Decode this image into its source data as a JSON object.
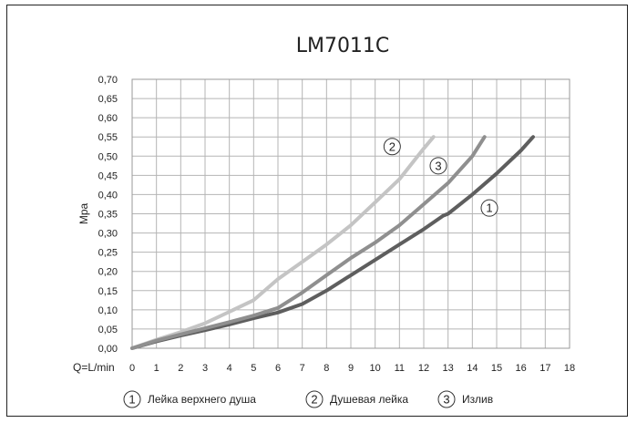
{
  "chart_data": {
    "type": "line",
    "title": "LM7011C",
    "ylabel": "Mpa",
    "xlabel": "Q=L/min",
    "xlim": [
      0,
      18
    ],
    "ylim": [
      0,
      0.7
    ],
    "x_ticks": [
      "0",
      "1",
      "2",
      "3",
      "4",
      "5",
      "6",
      "7",
      "8",
      "9",
      "10",
      "11",
      "12",
      "13",
      "14",
      "15",
      "16",
      "17",
      "18"
    ],
    "y_ticks": [
      "0,00",
      "0,05",
      "0,10",
      "0,15",
      "0,20",
      "0,25",
      "0,30",
      "0,35",
      "0,40",
      "0,45",
      "0,50",
      "0,55",
      "0,60",
      "0,65",
      "0,70"
    ],
    "grid": true,
    "legend_position": "bottom",
    "series": [
      {
        "id": "1",
        "name": "Лейка верхнего душа",
        "color": "#5e5e5e",
        "x": [
          0,
          1,
          2,
          3,
          4,
          5,
          6,
          7,
          8,
          9,
          10,
          11,
          12,
          12.8,
          13,
          14,
          15,
          16,
          16.5
        ],
        "y": [
          0,
          0.018,
          0.033,
          0.047,
          0.062,
          0.078,
          0.093,
          0.115,
          0.15,
          0.19,
          0.23,
          0.27,
          0.31,
          0.345,
          0.35,
          0.4,
          0.455,
          0.515,
          0.55
        ]
      },
      {
        "id": "2",
        "name": "Душевая лейка",
        "color": "#c4c4c4",
        "x": [
          0,
          1,
          2,
          3,
          4,
          5,
          6,
          7,
          8,
          9,
          10,
          11,
          12,
          12.4
        ],
        "y": [
          0,
          0.022,
          0.042,
          0.065,
          0.095,
          0.125,
          0.18,
          0.225,
          0.27,
          0.32,
          0.38,
          0.44,
          0.52,
          0.55
        ]
      },
      {
        "id": "3",
        "name": "Излив",
        "color": "#8f8f8f",
        "x": [
          0,
          1,
          2,
          3,
          4,
          5,
          6,
          7,
          8,
          9,
          10,
          11,
          12,
          13,
          14,
          14.5
        ],
        "y": [
          0,
          0.02,
          0.036,
          0.052,
          0.068,
          0.085,
          0.105,
          0.145,
          0.19,
          0.235,
          0.275,
          0.32,
          0.375,
          0.43,
          0.5,
          0.55
        ]
      }
    ],
    "curve_markers": [
      {
        "label": "2",
        "x": 10.7,
        "y": 0.525
      },
      {
        "label": "3",
        "x": 12.6,
        "y": 0.475
      },
      {
        "label": "1",
        "x": 14.7,
        "y": 0.365
      }
    ]
  }
}
